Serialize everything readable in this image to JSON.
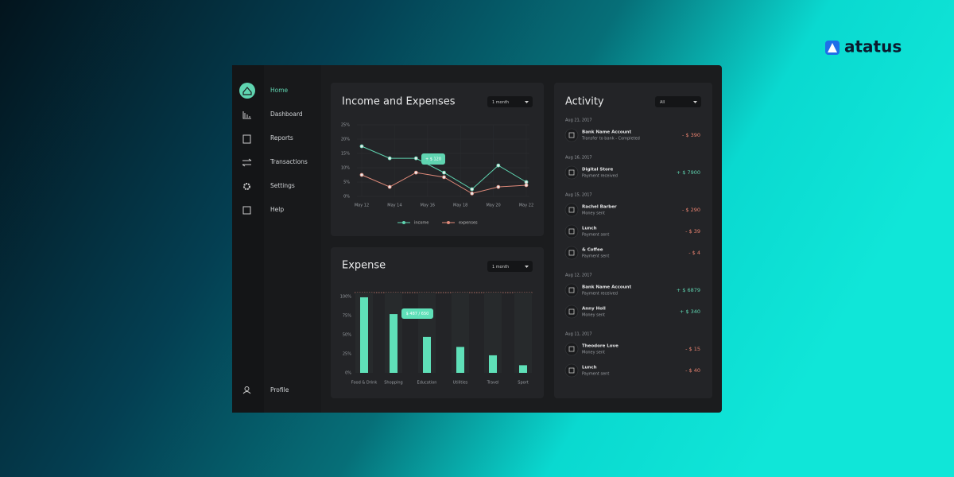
{
  "logo": "atatus",
  "nav": [
    "Home",
    "Dashboard",
    "Reports",
    "Transactions",
    "Settings",
    "Help"
  ],
  "profile": "Profile",
  "chart_data": [
    {
      "type": "line",
      "title": "Income and Expenses",
      "dropdown": "1 month",
      "x": [
        12,
        13.7,
        15.3,
        17,
        18.7,
        20.3,
        22
      ],
      "xlim": [
        12,
        22
      ],
      "xticks": [
        {
          "value": 12,
          "label": "May 12"
        },
        {
          "value": 14,
          "label": "May 14"
        },
        {
          "value": 16,
          "label": "May 16"
        },
        {
          "value": 18,
          "label": "May 18"
        },
        {
          "value": 20,
          "label": "May 20"
        },
        {
          "value": 22,
          "label": "May 22"
        }
      ],
      "ylim": [
        0,
        25
      ],
      "yticks": [
        {
          "value": 0,
          "label": "0%"
        },
        {
          "value": 5,
          "label": "5%"
        },
        {
          "value": 10,
          "label": "10%"
        },
        {
          "value": 15,
          "label": "15%"
        },
        {
          "value": 20,
          "label": "20%"
        },
        {
          "value": 25,
          "label": "25%"
        }
      ],
      "series": [
        {
          "name": "income",
          "color": "#5fd4b0",
          "values": [
            17.5,
            13.3,
            13.3,
            8.3,
            2.5,
            10.8,
            5
          ]
        },
        {
          "name": "expenses",
          "color": "#e08a7a",
          "values": [
            7.5,
            3.3,
            8.3,
            6.7,
            1,
            3.3,
            3.9
          ]
        }
      ],
      "annotation": "+ $ 120"
    },
    {
      "type": "bar",
      "title": "Expense",
      "dropdown": "1 month",
      "categories": [
        "Food & Drink",
        "Shopping",
        "Education",
        "Utilities",
        "Travel",
        "Sport"
      ],
      "values": [
        99,
        77,
        47,
        34,
        23,
        10
      ],
      "color": "#5fe0b8",
      "ylim": [
        0,
        100
      ],
      "yticks": [
        {
          "value": 0,
          "label": "0%"
        },
        {
          "value": 25,
          "label": "25%"
        },
        {
          "value": 50,
          "label": "50%"
        },
        {
          "value": 75,
          "label": "75%"
        },
        {
          "value": 100,
          "label": "100%"
        }
      ],
      "annotation": "$ 487 / 650"
    }
  ],
  "activity": {
    "title": "Activity",
    "filter": "All",
    "groups": [
      {
        "date": "Aug 21, 2017",
        "items": [
          {
            "name": "Bank Name Account",
            "note": "Transfer to bank - Completed",
            "amount": "- $ 390"
          }
        ]
      },
      {
        "date": "Aug 16, 2017",
        "items": [
          {
            "name": "Digital Store",
            "note": "Payment received",
            "amount": "+ $ 7900"
          }
        ]
      },
      {
        "date": "Aug 15, 2017",
        "items": [
          {
            "name": "Rachel Barber",
            "note": "Money sent",
            "amount": "- $ 290"
          },
          {
            "name": "Lunch",
            "note": "Payment sent",
            "amount": "- $ 39"
          },
          {
            "name": "& Coffee",
            "note": "Payment sent",
            "amount": "- $ 4"
          }
        ]
      },
      {
        "date": "Aug 12, 2017",
        "items": [
          {
            "name": "Bank Name Account",
            "note": "Payment received",
            "amount": "+ $ 6879"
          },
          {
            "name": "Anny Holl",
            "note": "Money sent",
            "amount": "+ $ 340"
          }
        ]
      },
      {
        "date": "Aug 11, 2017",
        "items": [
          {
            "name": "Theodore Love",
            "note": "Money sent",
            "amount": "- $ 15"
          },
          {
            "name": "Lunch",
            "note": "Payment sent",
            "amount": "- $ 40"
          }
        ]
      }
    ]
  }
}
